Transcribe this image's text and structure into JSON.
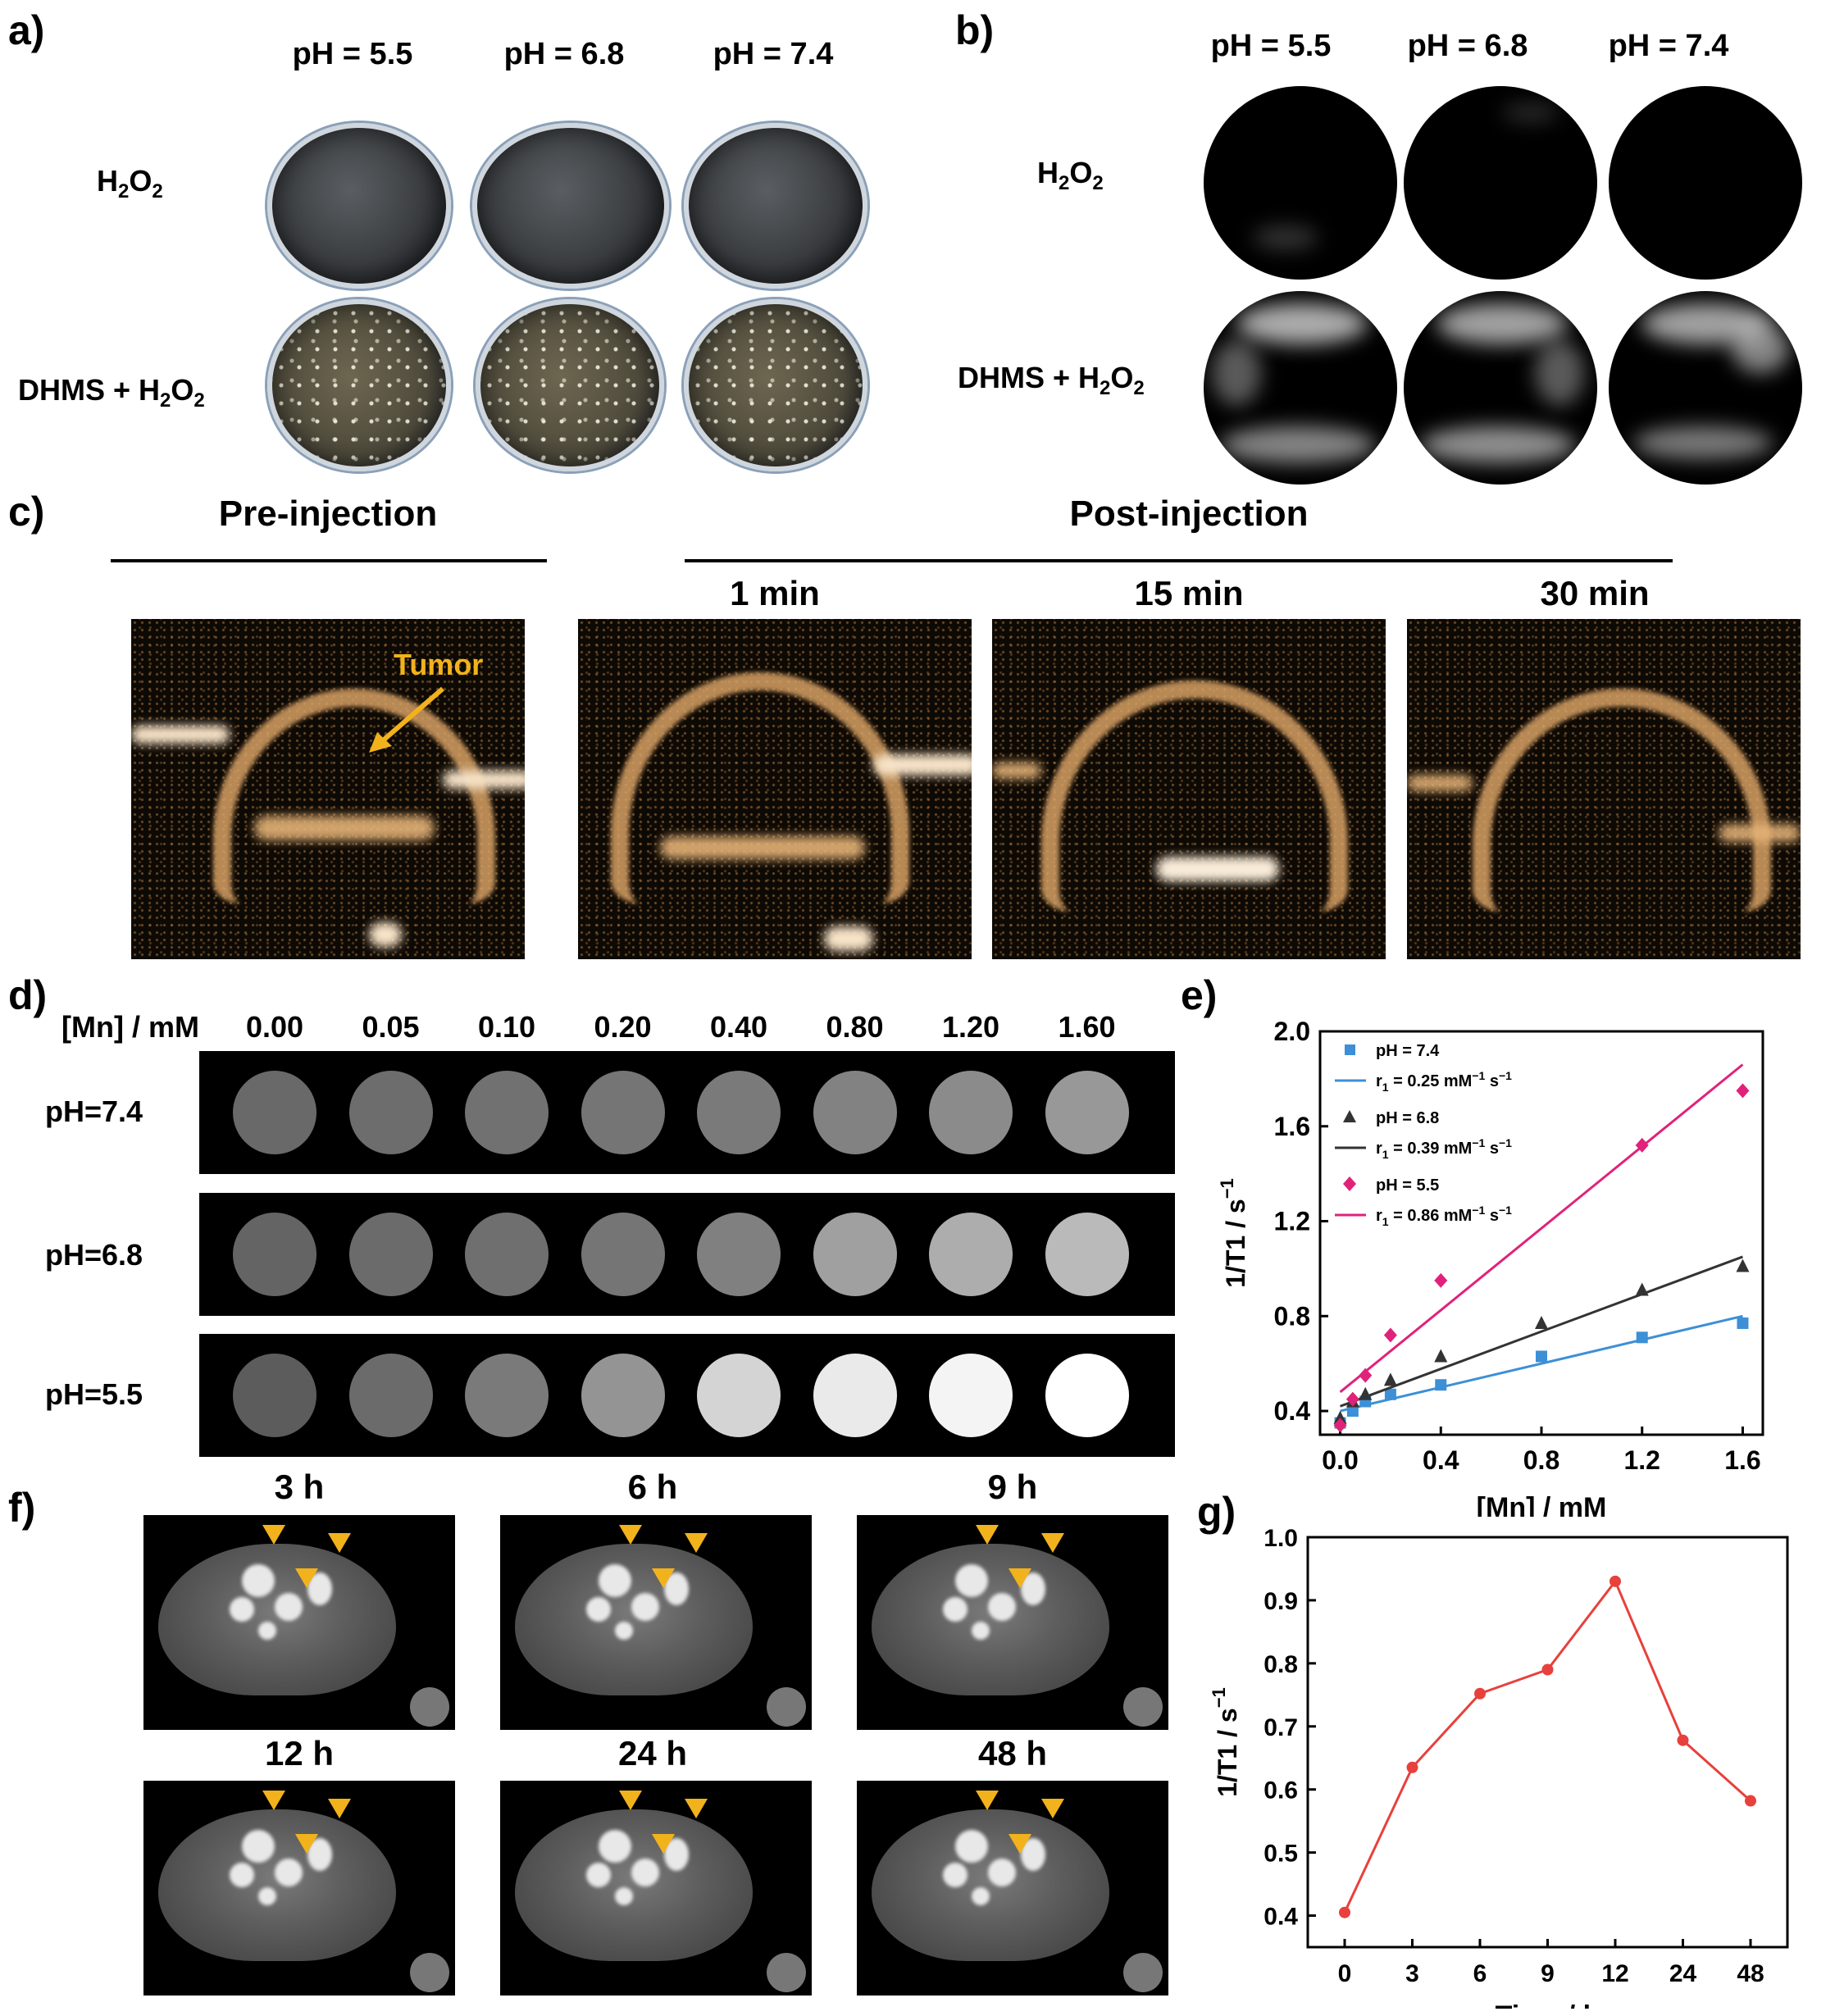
{
  "panel_labels": {
    "a": "a)",
    "b": "b)",
    "c": "c)",
    "d": "d)",
    "e": "e)",
    "f": "f)",
    "g": "g)"
  },
  "panel_a": {
    "columns": [
      "pH = 5.5",
      "pH = 6.8",
      "pH = 7.4"
    ],
    "row1_main": "H",
    "row1_sub1": "2",
    "row1_mid": "O",
    "row1_sub2": "2",
    "row2_main": "DHMS + H",
    "row2_sub1": "2",
    "row2_mid": "O",
    "row2_sub2": "2"
  },
  "panel_b": {
    "columns": [
      "pH = 5.5",
      "pH = 6.8",
      "pH = 7.4"
    ],
    "row1_main": "H",
    "row1_sub1": "2",
    "row1_mid": "O",
    "row1_sub2": "2",
    "row2_main": "DHMS + H",
    "row2_sub1": "2",
    "row2_mid": "O",
    "row2_sub2": "2"
  },
  "panel_c": {
    "pre_title": "Pre-injection",
    "post_title": "Post-injection",
    "times": [
      "1 min",
      "15 min",
      "30 min"
    ],
    "tumor_label": "Tumor"
  },
  "panel_d": {
    "header_label": "[Mn] / mM",
    "concentrations": [
      "0.00",
      "0.05",
      "0.10",
      "0.20",
      "0.40",
      "0.80",
      "1.20",
      "1.60"
    ],
    "rows": [
      "pH=7.4",
      "pH=6.8",
      "pH=5.5"
    ],
    "intensity_levels": [
      [
        0.3,
        0.32,
        0.34,
        0.36,
        0.38,
        0.42,
        0.46,
        0.52
      ],
      [
        0.28,
        0.31,
        0.33,
        0.36,
        0.41,
        0.56,
        0.62,
        0.68
      ],
      [
        0.24,
        0.31,
        0.38,
        0.5,
        0.8,
        0.9,
        0.95,
        1.0
      ]
    ]
  },
  "panel_f": {
    "times": [
      "3 h",
      "6 h",
      "9 h",
      "12 h",
      "24 h",
      "48 h"
    ]
  },
  "chart_data": [
    {
      "type": "scatter",
      "panel": "e",
      "xlabel": "[Mn] / mM",
      "ylabel": "1/T1 / s",
      "ylabel_sup": "−1",
      "xlim": [
        0,
        1.6
      ],
      "ylim": [
        0.3,
        2.0
      ],
      "xticks": [
        "0.0",
        "0.4",
        "0.8",
        "1.2",
        "1.6"
      ],
      "yticks": [
        "0.4",
        "0.8",
        "1.2",
        "1.6",
        "2.0"
      ],
      "x": [
        0.0,
        0.05,
        0.1,
        0.2,
        0.4,
        0.8,
        1.2,
        1.6
      ],
      "series": [
        {
          "name": "pH = 7.4",
          "fit_label": "r",
          "fit_sub": "1",
          "fit_val": " = 0.25 mM",
          "fit_sup1": "−1",
          "fit_unit": " s",
          "fit_sup2": "−1",
          "color": "#3d8fd6",
          "marker": "square",
          "values": [
            0.35,
            0.4,
            0.44,
            0.47,
            0.51,
            0.63,
            0.71,
            0.77
          ],
          "fit": [
            0.4,
            0.8
          ]
        },
        {
          "name": "pH = 6.8",
          "fit_label": "r",
          "fit_sub": "1",
          "fit_val": " = 0.39 mM",
          "fit_sup1": "−1",
          "fit_unit": " s",
          "fit_sup2": "−1",
          "color": "#333333",
          "marker": "triangle",
          "values": [
            0.37,
            0.44,
            0.47,
            0.53,
            0.63,
            0.77,
            0.91,
            1.01
          ],
          "fit": [
            0.42,
            1.05
          ]
        },
        {
          "name": "pH = 5.5",
          "fit_label": "r",
          "fit_sub": "1",
          "fit_val": " = 0.86 mM",
          "fit_sup1": "−1",
          "fit_unit": " s",
          "fit_sup2": "−1",
          "color": "#e0227a",
          "marker": "diamond",
          "values": [
            0.34,
            0.45,
            0.55,
            0.72,
            0.95,
            null,
            1.52,
            1.75
          ],
          "fit": [
            0.48,
            1.86
          ]
        }
      ]
    },
    {
      "type": "line",
      "panel": "g",
      "xlabel": "Time / h",
      "ylabel": "1/T1 / s",
      "ylabel_sup": "−1",
      "categories": [
        "0",
        "3",
        "6",
        "9",
        "12",
        "24",
        "48"
      ],
      "ylim": [
        0.35,
        1.0
      ],
      "yticks": [
        "0.4",
        "0.5",
        "0.6",
        "0.7",
        "0.8",
        "0.9",
        "1.0"
      ],
      "series": [
        {
          "color": "#e8403c",
          "values": [
            0.405,
            0.635,
            0.752,
            0.79,
            0.93,
            0.678,
            0.582
          ]
        }
      ]
    }
  ]
}
